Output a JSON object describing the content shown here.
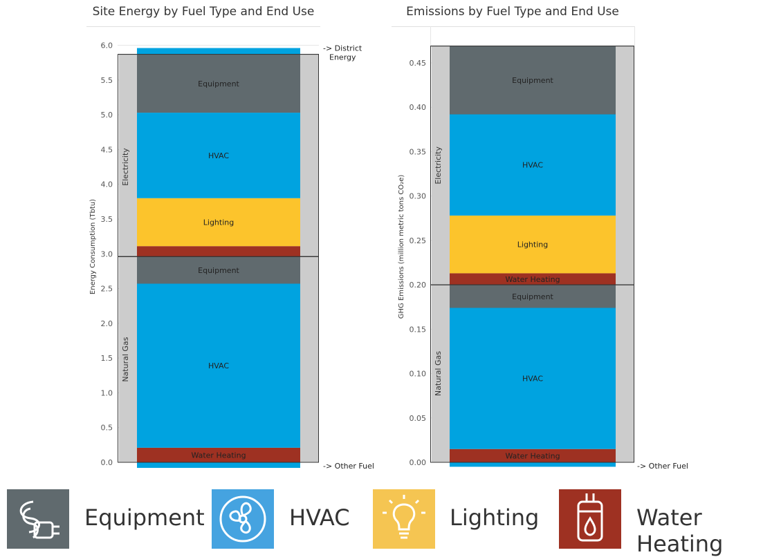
{
  "chart_data": [
    {
      "type": "bar",
      "title": "Site Energy by Fuel Type and End Use",
      "ylabel": "Energy Consumption (Tbtu)",
      "ylim": [
        -0.08,
        6.05
      ],
      "yticks": [
        "0.0",
        "0.5",
        "1.0",
        "1.5",
        "2.0",
        "2.5",
        "3.0",
        "3.5",
        "4.0",
        "4.5",
        "5.0",
        "5.5",
        "6.0"
      ],
      "grid": true,
      "fuels": [
        {
          "name": "Natural Gas",
          "from": 0.0,
          "to": 2.96
        },
        {
          "name": "Electricity",
          "from": 2.96,
          "to": 5.87
        }
      ],
      "segments": [
        {
          "fuel": "Other Fuel",
          "end_use": "HVAC",
          "from": -0.08,
          "to": 0.0,
          "label": ""
        },
        {
          "fuel": "Natural Gas",
          "end_use": "Water Heating",
          "from": 0.0,
          "to": 0.21,
          "label": "Water Heating"
        },
        {
          "fuel": "Natural Gas",
          "end_use": "HVAC",
          "from": 0.21,
          "to": 2.57,
          "label": "HVAC"
        },
        {
          "fuel": "Natural Gas",
          "end_use": "Equipment",
          "from": 2.57,
          "to": 2.96,
          "label": "Equipment"
        },
        {
          "fuel": "Electricity",
          "end_use": "Water Heating",
          "from": 2.96,
          "to": 3.11,
          "label": ""
        },
        {
          "fuel": "Electricity",
          "end_use": "Lighting",
          "from": 3.11,
          "to": 3.8,
          "label": "Lighting"
        },
        {
          "fuel": "Electricity",
          "end_use": "HVAC",
          "from": 3.8,
          "to": 5.03,
          "label": "HVAC"
        },
        {
          "fuel": "Electricity",
          "end_use": "Equipment",
          "from": 5.03,
          "to": 5.87,
          "label": "Equipment"
        },
        {
          "fuel": "District Energy",
          "end_use": "HVAC",
          "from": 5.87,
          "to": 5.96,
          "label": ""
        }
      ],
      "annotations": [
        {
          "text": "-> District",
          "at": 5.96
        },
        {
          "text": "Energy",
          "at": 5.83
        },
        {
          "text": "-> Other Fuel",
          "at": -0.05
        }
      ]
    },
    {
      "type": "bar",
      "title": "Emissions by Fuel Type and End Use",
      "ylabel": "GHG Emissions (million metric tons CO₂e)",
      "ylim": [
        -0.005,
        0.478
      ],
      "yticks": [
        "0.00",
        "0.05",
        "0.10",
        "0.15",
        "0.20",
        "0.25",
        "0.30",
        "0.35",
        "0.40",
        "0.45"
      ],
      "grid": true,
      "fuels": [
        {
          "name": "Natural Gas",
          "from": 0.0,
          "to": 0.2
        },
        {
          "name": "Electricity",
          "from": 0.2,
          "to": 0.469
        }
      ],
      "segments": [
        {
          "fuel": "Other Fuel",
          "end_use": "HVAC",
          "from": -0.005,
          "to": 0.0,
          "label": ""
        },
        {
          "fuel": "Natural Gas",
          "end_use": "Water Heating",
          "from": 0.0,
          "to": 0.015,
          "label": "Water Heating"
        },
        {
          "fuel": "Natural Gas",
          "end_use": "HVAC",
          "from": 0.015,
          "to": 0.174,
          "label": "HVAC"
        },
        {
          "fuel": "Natural Gas",
          "end_use": "Equipment",
          "from": 0.174,
          "to": 0.2,
          "label": "Equipment"
        },
        {
          "fuel": "Electricity",
          "end_use": "Water Heating",
          "from": 0.2,
          "to": 0.213,
          "label": "Water Heating"
        },
        {
          "fuel": "Electricity",
          "end_use": "Lighting",
          "from": 0.213,
          "to": 0.278,
          "label": "Lighting"
        },
        {
          "fuel": "Electricity",
          "end_use": "HVAC",
          "from": 0.278,
          "to": 0.392,
          "label": "HVAC"
        },
        {
          "fuel": "Electricity",
          "end_use": "Equipment",
          "from": 0.392,
          "to": 0.469,
          "label": "Equipment"
        }
      ],
      "annotations": [
        {
          "text": "-> Other Fuel",
          "at": -0.004
        }
      ]
    }
  ],
  "colors": {
    "Equipment": "#606a6e",
    "HVAC": "#00a3e0",
    "Lighting": "#fcc42c",
    "Water Heating": "#9e3122",
    "fuel_band": "#cccccc",
    "grid": "#e6e6e6"
  },
  "legend": [
    {
      "label": "Equipment",
      "icon": "plug-icon",
      "color": "#606a6e"
    },
    {
      "label": "HVAC",
      "icon": "fan-icon",
      "color": "#45a3e0"
    },
    {
      "label": "Lighting",
      "icon": "lightbulb-icon",
      "color": "#f5c552"
    },
    {
      "label": "Water Heating",
      "icon": "water-heater-icon",
      "color": "#9e3122"
    }
  ]
}
